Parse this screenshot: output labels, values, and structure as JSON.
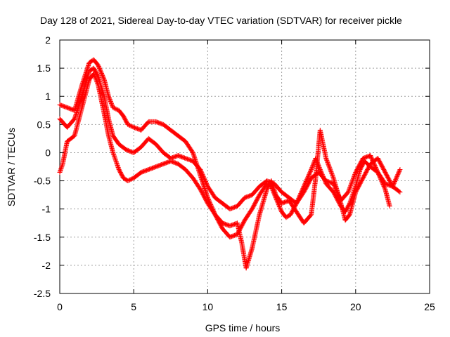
{
  "chart_data": {
    "type": "scatter",
    "title": "Day 128 of 2021, Sidereal Day-to-day VTEC variation (SDTVAR) for receiver pickle",
    "xlabel": "GPS time / hours",
    "ylabel": "SDTVAR / TECUs",
    "xlim": [
      0,
      25
    ],
    "ylim": [
      -2.5,
      2
    ],
    "xticks": [
      0,
      5,
      10,
      15,
      20,
      25
    ],
    "yticks": [
      -2.5,
      -2,
      -1.5,
      -1,
      -0.5,
      0,
      0.5,
      1,
      1.5,
      2
    ],
    "grid": true,
    "marker": "+",
    "color": "#ff0000",
    "series": [
      {
        "x": [
          0.0,
          0.5,
          1.0,
          1.5,
          2.0,
          2.3,
          2.6,
          3.0,
          3.3,
          3.6,
          4.0,
          4.3,
          4.6,
          5.0,
          5.5,
          6.0,
          6.5,
          7.0,
          7.5,
          8.0,
          8.5,
          9.0,
          9.5,
          10.0,
          10.5,
          11.0,
          11.5,
          12.0,
          12.5,
          13.0,
          13.5,
          14.0,
          14.3,
          14.6,
          15.0,
          15.3,
          15.6,
          16.0,
          16.5,
          17.0,
          17.3,
          17.6,
          18.0,
          18.5,
          19.0,
          19.3,
          19.6,
          20.0,
          20.3,
          20.6,
          21.0,
          21.5,
          22.0,
          22.5,
          23.0
        ],
        "y": [
          0.85,
          0.8,
          0.75,
          1.2,
          1.6,
          1.65,
          1.55,
          1.3,
          1.0,
          0.8,
          0.75,
          0.65,
          0.5,
          0.45,
          0.4,
          0.55,
          0.55,
          0.5,
          0.4,
          0.3,
          0.2,
          0.0,
          -0.4,
          -0.8,
          -1.1,
          -1.35,
          -1.5,
          -1.45,
          -1.2,
          -1.0,
          -0.75,
          -0.55,
          -0.6,
          -0.8,
          -1.05,
          -1.15,
          -1.1,
          -0.9,
          -0.6,
          -0.3,
          -0.1,
          -0.3,
          -0.55,
          -0.7,
          -0.95,
          -1.05,
          -0.9,
          -0.6,
          -0.3,
          -0.15,
          -0.25,
          -0.35,
          -0.55,
          -0.6,
          -0.7
        ]
      },
      {
        "x": [
          0.0,
          0.5,
          1.0,
          1.5,
          2.0,
          2.3,
          2.6,
          3.0,
          3.3,
          3.6,
          4.0,
          4.5,
          5.0,
          5.5,
          6.0,
          6.5,
          7.0,
          7.5,
          8.0,
          8.5,
          9.0,
          9.5,
          10.0,
          10.5,
          11.0,
          11.5,
          12.0,
          12.5,
          13.0,
          13.5,
          14.0,
          14.5,
          15.0,
          15.5,
          16.0,
          16.5,
          17.0,
          17.5,
          18.0,
          18.5,
          19.0,
          19.5,
          20.0,
          20.5,
          21.0,
          21.5,
          22.0,
          22.3
        ],
        "y": [
          0.6,
          0.45,
          0.6,
          1.0,
          1.45,
          1.5,
          1.35,
          1.0,
          0.6,
          0.3,
          0.15,
          0.05,
          0.0,
          0.1,
          0.25,
          0.15,
          0.0,
          -0.1,
          -0.05,
          -0.1,
          -0.15,
          -0.3,
          -0.6,
          -0.8,
          -0.9,
          -1.0,
          -0.95,
          -0.8,
          -0.75,
          -0.6,
          -0.5,
          -0.55,
          -0.7,
          -0.8,
          -0.9,
          -0.7,
          -0.45,
          -0.35,
          -0.5,
          -0.55,
          -0.85,
          -0.7,
          -0.35,
          -0.1,
          -0.05,
          -0.35,
          -0.65,
          -0.95
        ]
      },
      {
        "x": [
          0.0,
          0.2,
          0.5,
          1.0,
          1.5,
          2.0,
          2.3,
          2.6,
          3.0,
          3.3,
          3.6,
          4.0,
          4.3,
          4.6,
          5.0,
          5.5,
          6.0,
          6.5,
          7.0,
          7.5,
          8.0,
          8.5,
          9.0,
          9.5,
          10.0,
          10.5,
          11.0,
          11.5,
          12.0,
          12.3,
          12.6,
          13.0,
          13.5,
          14.0,
          14.3,
          14.6,
          15.0,
          15.5,
          16.0,
          16.5,
          17.0,
          17.3,
          17.6,
          18.0,
          18.5,
          19.0,
          19.3,
          19.6,
          20.0,
          20.5,
          21.0,
          21.5,
          22.0,
          22.5,
          23.0
        ],
        "y": [
          -0.35,
          -0.2,
          0.2,
          0.3,
          0.8,
          1.3,
          1.4,
          1.2,
          0.7,
          0.3,
          0.0,
          -0.3,
          -0.45,
          -0.5,
          -0.45,
          -0.35,
          -0.3,
          -0.25,
          -0.2,
          -0.15,
          -0.2,
          -0.3,
          -0.45,
          -0.65,
          -0.9,
          -1.1,
          -1.25,
          -1.3,
          -1.25,
          -1.6,
          -2.05,
          -1.7,
          -1.1,
          -0.65,
          -0.5,
          -0.75,
          -0.9,
          -0.85,
          -1.05,
          -1.25,
          -1.1,
          -0.45,
          0.4,
          -0.1,
          -0.45,
          -0.9,
          -1.2,
          -1.1,
          -0.7,
          -0.45,
          -0.2,
          -0.1,
          -0.35,
          -0.6,
          -0.3
        ]
      }
    ]
  }
}
